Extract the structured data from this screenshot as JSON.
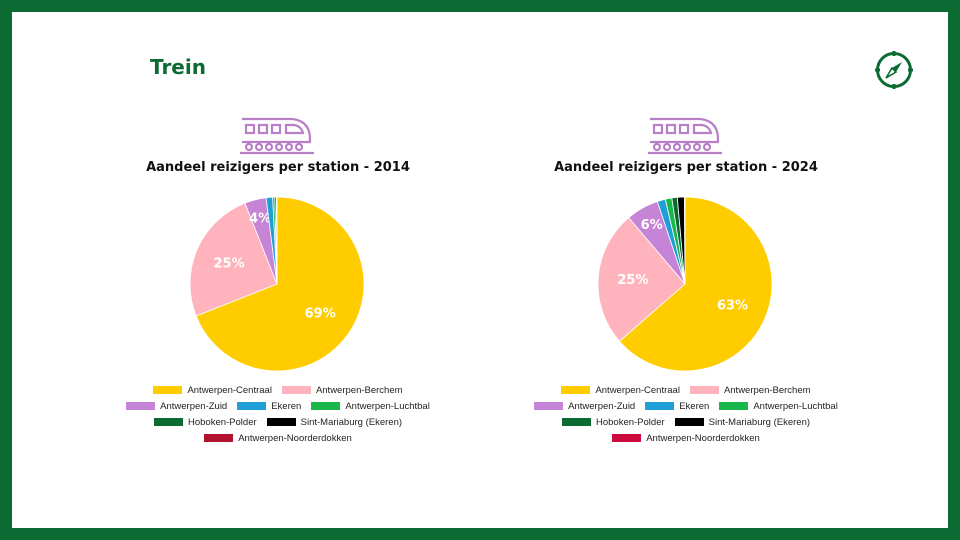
{
  "page": {
    "title": "Trein"
  },
  "icons": {
    "logo": "compass-icon",
    "chart_icon": "train-icon"
  },
  "colors": {
    "frame": "#0b6b33",
    "train_icon": "#b87fc9",
    "Antwerpen-Centraal": "#ffcc00",
    "Antwerpen-Berchem": "#ffb3bd",
    "Antwerpen-Zuid": "#c584d6",
    "Ekeren": "#1f9fd6",
    "Antwerpen-Luchtbal": "#19b84a",
    "Hoboken-Polder": "#0b6b33",
    "Sint-Mariaburg (Ekeren)": "#000000",
    "Antwerpen-Noorderdokken": "#b2122d"
  },
  "chart_data": [
    {
      "type": "pie",
      "title": "Aandeel reizigers per station - 2014",
      "legend_position": "bottom",
      "slices": [
        {
          "label": "Antwerpen-Centraal",
          "value": 69,
          "data_label": "69%",
          "color": "#ffcc00"
        },
        {
          "label": "Antwerpen-Berchem",
          "value": 25,
          "data_label": "25%",
          "color": "#ffb3bd"
        },
        {
          "label": "Antwerpen-Zuid",
          "value": 4,
          "data_label": "4%",
          "color": "#c584d6"
        },
        {
          "label": "Ekeren",
          "value": 1.2,
          "data_label": "",
          "color": "#1f9fd6"
        },
        {
          "label": "Antwerpen-Luchtbal",
          "value": 0.4,
          "data_label": "",
          "color": "#19b84a"
        },
        {
          "label": "Hoboken-Polder",
          "value": 0.3,
          "data_label": "",
          "color": "#0b6b33"
        },
        {
          "label": "Sint-Mariaburg (Ekeren)",
          "value": 0.1,
          "data_label": "",
          "color": "#000000"
        },
        {
          "label": "Antwerpen-Noorderdokken",
          "value": 0,
          "data_label": "",
          "color": "#b2122d"
        }
      ],
      "legend": [
        [
          "Antwerpen-Centraal",
          "Antwerpen-Berchem"
        ],
        [
          "Antwerpen-Zuid",
          "Ekeren",
          "Antwerpen-Luchtbal"
        ],
        [
          "Hoboken-Polder",
          "Sint-Mariaburg (Ekeren)"
        ],
        [
          "Antwerpen-Noorderdokken"
        ]
      ]
    },
    {
      "type": "pie",
      "title": "Aandeel reizigers per station - 2024",
      "legend_position": "bottom",
      "slices": [
        {
          "label": "Antwerpen-Centraal",
          "value": 63,
          "data_label": "63%",
          "color": "#ffcc00"
        },
        {
          "label": "Antwerpen-Berchem",
          "value": 25,
          "data_label": "25%",
          "color": "#ffb3bd"
        },
        {
          "label": "Antwerpen-Zuid",
          "value": 6,
          "data_label": "6%",
          "color": "#c584d6"
        },
        {
          "label": "Ekeren",
          "value": 1.5,
          "data_label": "",
          "color": "#1f9fd6"
        },
        {
          "label": "Antwerpen-Luchtbal",
          "value": 1.2,
          "data_label": "",
          "color": "#19b84a"
        },
        {
          "label": "Hoboken-Polder",
          "value": 1,
          "data_label": "",
          "color": "#0b6b33"
        },
        {
          "label": "Sint-Mariaburg (Ekeren)",
          "value": 1.3,
          "data_label": "",
          "color": "#000000"
        },
        {
          "label": "Antwerpen-Noorderdokken",
          "value": 0.1,
          "data_label": "",
          "color": "#cc0a3e"
        }
      ],
      "legend": [
        [
          "Antwerpen-Centraal",
          "Antwerpen-Berchem"
        ],
        [
          "Antwerpen-Zuid",
          "Ekeren",
          "Antwerpen-Luchtbal"
        ],
        [
          "Hoboken-Polder",
          "Sint-Mariaburg (Ekeren)"
        ],
        [
          "Antwerpen-Noorderdokken"
        ]
      ]
    }
  ]
}
